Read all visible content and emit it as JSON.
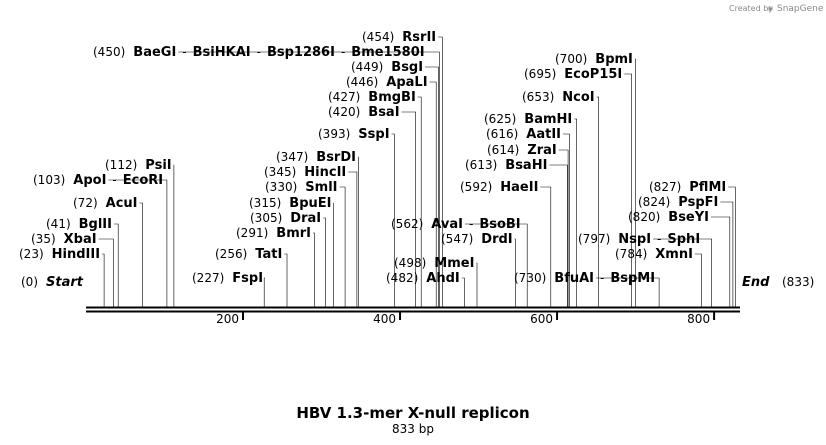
{
  "credit": {
    "prefix": "Created by",
    "brand": "SnapGene"
  },
  "title": "HBV 1.3-mer X-null replicon",
  "length_label": "833 bp",
  "sequence_length": 833,
  "ticks": [
    200,
    400,
    600,
    800
  ],
  "ends": {
    "start_pos": "(0)",
    "start_label": "Start",
    "end_label": "End",
    "end_pos": "(833)"
  },
  "sites": [
    {
      "pos": "(23)",
      "names": [
        "HindIII"
      ],
      "cuts": [
        23
      ]
    },
    {
      "pos": "(35)",
      "names": [
        "XbaI"
      ],
      "cuts": [
        35
      ]
    },
    {
      "pos": "(41)",
      "names": [
        "BglII"
      ],
      "cuts": [
        41
      ]
    },
    {
      "pos": "(72)",
      "names": [
        "AcuI"
      ],
      "cuts": [
        72
      ]
    },
    {
      "pos": "(103)",
      "names": [
        "ApoI",
        "EcoRI"
      ],
      "cuts": [
        103
      ]
    },
    {
      "pos": "(112)",
      "names": [
        "PsiI"
      ],
      "cuts": [
        112
      ]
    },
    {
      "pos": "(227)",
      "names": [
        "FspI"
      ],
      "cuts": [
        227
      ]
    },
    {
      "pos": "(256)",
      "names": [
        "TatI"
      ],
      "cuts": [
        256
      ]
    },
    {
      "pos": "(291)",
      "names": [
        "BmrI"
      ],
      "cuts": [
        291
      ]
    },
    {
      "pos": "(305)",
      "names": [
        "DraI"
      ],
      "cuts": [
        305
      ]
    },
    {
      "pos": "(315)",
      "names": [
        "BpuEI"
      ],
      "cuts": [
        315
      ]
    },
    {
      "pos": "(330)",
      "names": [
        "SmlI"
      ],
      "cuts": [
        330
      ]
    },
    {
      "pos": "(345)",
      "names": [
        "HincII"
      ],
      "cuts": [
        345
      ]
    },
    {
      "pos": "(347)",
      "names": [
        "BsrDI"
      ],
      "cuts": [
        347
      ]
    },
    {
      "pos": "(393)",
      "names": [
        "SspI"
      ],
      "cuts": [
        393
      ]
    },
    {
      "pos": "(420)",
      "names": [
        "BsaI"
      ],
      "cuts": [
        420
      ]
    },
    {
      "pos": "(427)",
      "names": [
        "BmgBI"
      ],
      "cuts": [
        427
      ]
    },
    {
      "pos": "(446)",
      "names": [
        "ApaLI"
      ],
      "cuts": [
        446
      ]
    },
    {
      "pos": "(449)",
      "names": [
        "BsgI"
      ],
      "cuts": [
        449
      ]
    },
    {
      "pos": "(450)",
      "names": [
        "BaeGI",
        "BsiHKAI",
        "Bsp1286I",
        "Bme1580I"
      ],
      "cuts": [
        450
      ]
    },
    {
      "pos": "(454)",
      "names": [
        "RsrII"
      ],
      "cuts": [
        454
      ]
    },
    {
      "pos": "(482)",
      "names": [
        "AhdI"
      ],
      "cuts": [
        482
      ]
    },
    {
      "pos": "(498)",
      "names": [
        "MmeI"
      ],
      "cuts": [
        498
      ]
    },
    {
      "pos": "(547)",
      "names": [
        "DrdI"
      ],
      "cuts": [
        547
      ]
    },
    {
      "pos": "(562)",
      "names": [
        "AvaI",
        "BsoBI"
      ],
      "cuts": [
        562
      ]
    },
    {
      "pos": "(592)",
      "names": [
        "HaeII"
      ],
      "cuts": [
        592
      ]
    },
    {
      "pos": "(613)",
      "names": [
        "BsaHI"
      ],
      "cuts": [
        613
      ]
    },
    {
      "pos": "(614)",
      "names": [
        "ZraI"
      ],
      "cuts": [
        614
      ]
    },
    {
      "pos": "(616)",
      "names": [
        "AatII"
      ],
      "cuts": [
        616
      ]
    },
    {
      "pos": "(625)",
      "names": [
        "BamHI"
      ],
      "cuts": [
        625
      ]
    },
    {
      "pos": "(653)",
      "names": [
        "NcoI"
      ],
      "cuts": [
        653
      ]
    },
    {
      "pos": "(695)",
      "names": [
        "EcoP15I"
      ],
      "cuts": [
        695
      ]
    },
    {
      "pos": "(700)",
      "names": [
        "BpmI"
      ],
      "cuts": [
        700
      ]
    },
    {
      "pos": "(730)",
      "names": [
        "BfuAI",
        "BspMI"
      ],
      "cuts": [
        730
      ]
    },
    {
      "pos": "(784)",
      "names": [
        "XmnI"
      ],
      "cuts": [
        784
      ]
    },
    {
      "pos": "(797)",
      "names": [
        "NspI",
        "SphI"
      ],
      "cuts": [
        797
      ]
    },
    {
      "pos": "(820)",
      "names": [
        "BseYI"
      ],
      "cuts": [
        820
      ]
    },
    {
      "pos": "(824)",
      "names": [
        "PspFI"
      ],
      "cuts": [
        824
      ]
    },
    {
      "pos": "(827)",
      "names": [
        "PflMI"
      ],
      "cuts": [
        827
      ]
    }
  ]
}
